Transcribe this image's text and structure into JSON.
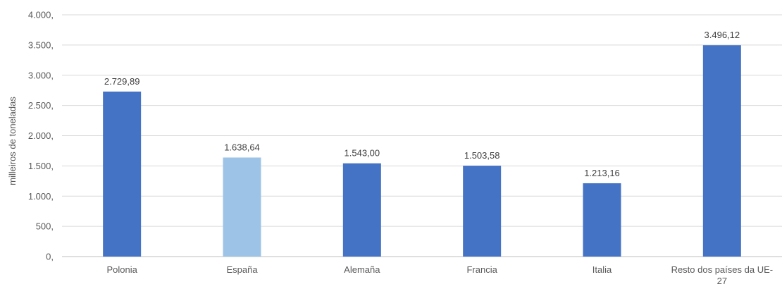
{
  "chart_data": {
    "type": "bar",
    "title": "",
    "xlabel": "",
    "ylabel": "milleiros de toneladas",
    "ylim": [
      0,
      4000
    ],
    "grid": true,
    "legend": "none",
    "y_ticks": [
      0,
      500,
      1000,
      1500,
      2000,
      2500,
      3000,
      3500,
      4000
    ],
    "y_tick_labels": [
      "0,",
      "500,",
      "1.000,",
      "1.500,",
      "2.000,",
      "2.500,",
      "3.000,",
      "3.500,",
      "4.000,"
    ],
    "categories": [
      "Polonia",
      "España",
      "Alemaña",
      "Francia",
      "Italia",
      "Resto dos países da UE-27"
    ],
    "category_lines": [
      [
        "Polonia"
      ],
      [
        "España"
      ],
      [
        "Alemaña"
      ],
      [
        "Francia"
      ],
      [
        "Italia"
      ],
      [
        "Resto dos países da UE-",
        "27"
      ]
    ],
    "values": [
      2729.89,
      1638.64,
      1543.0,
      1503.58,
      1213.16,
      3496.12
    ],
    "value_labels": [
      "2.729,89",
      "1.638,64",
      "1.543,00",
      "1.503,58",
      "1.213,16",
      "3.496,12"
    ],
    "colors": {
      "default": "#4472C4",
      "highlight": "#9DC3E6",
      "grid": "#D9D9D9",
      "axis": "#BFBFBF"
    },
    "highlight_category": "España"
  }
}
